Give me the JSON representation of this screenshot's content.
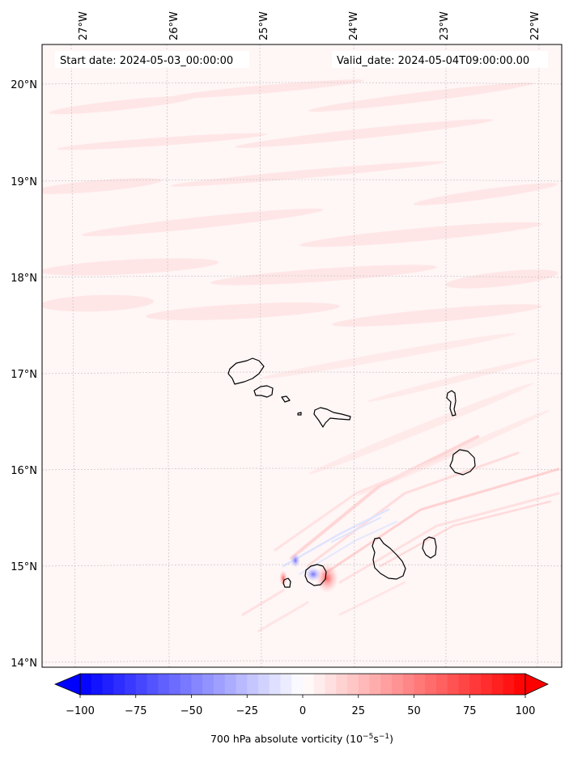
{
  "map": {
    "start_date_text": "Start date: 2024-05-03_00:00:00",
    "valid_date_text": "Valid_date: 2024-05-04T09:00:00.00",
    "lon_labels": [
      "27°W",
      "26°W",
      "25°W",
      "24°W",
      "23°W",
      "22°W"
    ],
    "lat_labels": [
      "20°N",
      "19°N",
      "18°N",
      "17°N",
      "16°N",
      "15°N",
      "14°N"
    ],
    "field_colors": {
      "background": "#fff6f6",
      "light_streak": "#ffe9e9",
      "medium_streak": "#ffd9d9",
      "strong_positive": "#ff6a6a",
      "negative": "#8c8cff",
      "coastline": "#000000"
    },
    "islands": [
      "Santo Antão",
      "São Vicente",
      "Santa Luzia",
      "São Nicolau",
      "Sal",
      "Boa Vista",
      "Maio",
      "Santiago",
      "Fogo",
      "Brava"
    ]
  },
  "colorbar": {
    "label_prefix": "700 hPa absolute vorticity (10",
    "label_exp1": "−5",
    "label_mid": "s",
    "label_exp2": "−1",
    "label_suffix": ")",
    "ticks": [
      "−100",
      "−75",
      "−50",
      "−25",
      "0",
      "25",
      "50",
      "75",
      "100"
    ],
    "tick_values": [
      -100,
      -75,
      -50,
      -25,
      0,
      25,
      50,
      75,
      100
    ],
    "vmin": -100,
    "vmax": 100,
    "levels": 40,
    "colormap": "bwr",
    "extend": "both"
  }
}
